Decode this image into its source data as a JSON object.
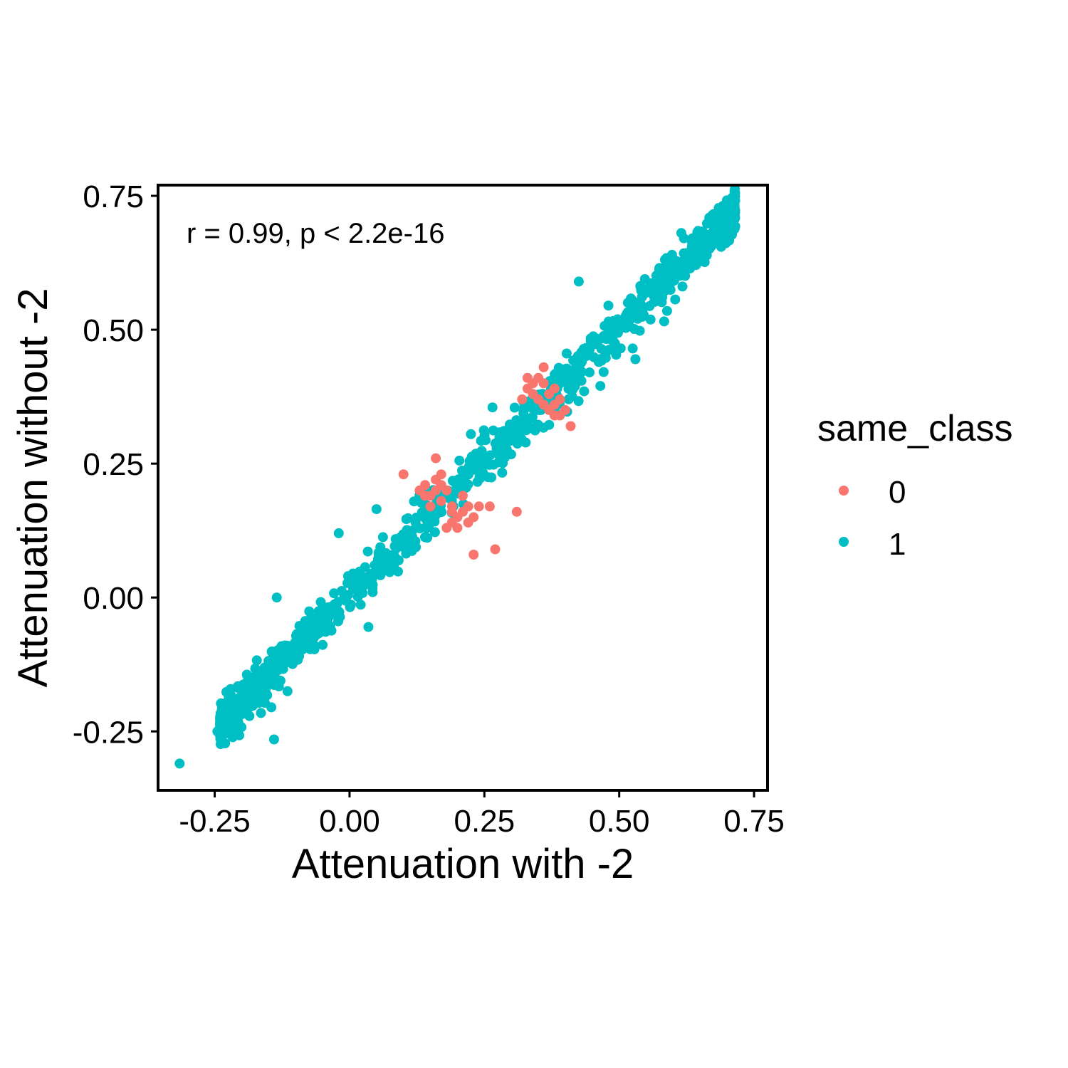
{
  "chart_data": {
    "type": "scatter",
    "title": "",
    "xlabel": "Attenuation with -2",
    "ylabel": "Attenuation without -2",
    "xlim": [
      -0.355,
      0.775
    ],
    "ylim": [
      -0.36,
      0.77
    ],
    "x_ticks": [
      "-0.25",
      "0.00",
      "0.25",
      "0.50",
      "0.75"
    ],
    "x_tick_values": [
      -0.25,
      0,
      0.25,
      0.5,
      0.75
    ],
    "y_ticks": [
      "-0.25",
      "0.00",
      "0.25",
      "0.50",
      "0.75"
    ],
    "y_tick_values": [
      -0.25,
      0,
      0.25,
      0.5,
      0.75
    ],
    "grid": false,
    "annotation": "r = 0.99, p < 2.2e-16",
    "legend": {
      "title": "same_class",
      "position": "right",
      "items": [
        {
          "label": "0",
          "color": "#F8766D"
        },
        {
          "label": "1",
          "color": "#00BFC4"
        }
      ]
    },
    "series": [
      {
        "label": "0",
        "color": "#F8766D",
        "points": [
          [
            0.1,
            0.23
          ],
          [
            0.16,
            0.26
          ],
          [
            0.13,
            0.2
          ],
          [
            0.14,
            0.21
          ],
          [
            0.15,
            0.19
          ],
          [
            0.16,
            0.22
          ],
          [
            0.17,
            0.23
          ],
          [
            0.18,
            0.2
          ],
          [
            0.17,
            0.18
          ],
          [
            0.15,
            0.17
          ],
          [
            0.19,
            0.17
          ],
          [
            0.2,
            0.15
          ],
          [
            0.21,
            0.16
          ],
          [
            0.22,
            0.17
          ],
          [
            0.19,
            0.14
          ],
          [
            0.18,
            0.13
          ],
          [
            0.23,
            0.15
          ],
          [
            0.24,
            0.17
          ],
          [
            0.22,
            0.14
          ],
          [
            0.2,
            0.13
          ],
          [
            0.26,
            0.17
          ],
          [
            0.31,
            0.16
          ],
          [
            0.23,
            0.08
          ],
          [
            0.27,
            0.09
          ],
          [
            0.21,
            0.19
          ],
          [
            0.16,
            0.2
          ],
          [
            0.17,
            0.21
          ],
          [
            0.19,
            0.16
          ],
          [
            0.14,
            0.19
          ],
          [
            0.33,
            0.41
          ],
          [
            0.36,
            0.43
          ],
          [
            0.35,
            0.41
          ],
          [
            0.33,
            0.39
          ],
          [
            0.34,
            0.38
          ],
          [
            0.36,
            0.4
          ],
          [
            0.37,
            0.38
          ],
          [
            0.38,
            0.36
          ],
          [
            0.39,
            0.34
          ],
          [
            0.4,
            0.35
          ],
          [
            0.41,
            0.32
          ],
          [
            0.35,
            0.37
          ],
          [
            0.34,
            0.4
          ],
          [
            0.38,
            0.39
          ],
          [
            0.37,
            0.35
          ],
          [
            0.39,
            0.37
          ],
          [
            0.36,
            0.36
          ],
          [
            0.32,
            0.37
          ],
          [
            0.38,
            0.34
          ]
        ]
      },
      {
        "label": "1",
        "color": "#00BFC4",
        "outliers": [
          [
            -0.315,
            -0.31
          ],
          [
            -0.245,
            -0.25
          ],
          [
            -0.14,
            -0.265
          ],
          [
            -0.145,
            -0.205
          ],
          [
            -0.135,
            0.0
          ],
          [
            -0.115,
            -0.175
          ],
          [
            -0.02,
            0.12
          ],
          [
            0.05,
            0.165
          ],
          [
            0.265,
            0.355
          ],
          [
            0.225,
            0.305
          ],
          [
            0.425,
            0.59
          ],
          [
            0.48,
            0.545
          ],
          [
            0.525,
            0.465
          ],
          [
            0.53,
            0.445
          ],
          [
            0.465,
            0.395
          ],
          [
            0.435,
            0.385
          ],
          [
            0.035,
            -0.055
          ],
          [
            0.62,
            0.63
          ],
          [
            0.59,
            0.6
          ]
        ],
        "trend": {
          "x_range": [
            -0.24,
            0.715
          ],
          "intercept": 0.005,
          "slope": 1.0,
          "spread": 0.026,
          "n": 1100
        }
      }
    ]
  }
}
